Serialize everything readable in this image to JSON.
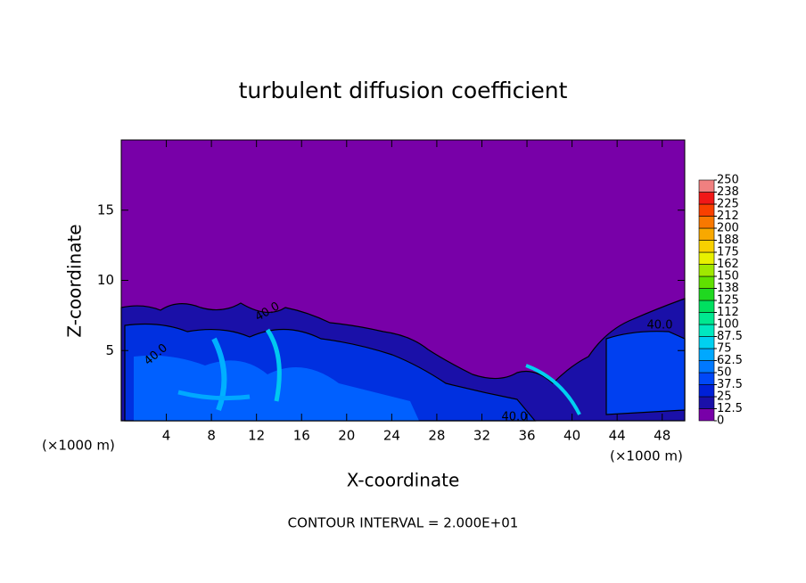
{
  "chart_data": {
    "type": "contour",
    "title": "turbulent diffusion coefficient",
    "x_label": "X-coordinate",
    "y_label": "Z-coordinate",
    "x_unit": "(×1000 m)",
    "xlim": [
      0,
      50
    ],
    "xticks": [
      4,
      8,
      12,
      16,
      20,
      24,
      28,
      32,
      36,
      40,
      44,
      48
    ],
    "ylim": [
      0,
      20
    ],
    "yticks": [
      5,
      10,
      15
    ],
    "footer": "CONTOUR INTERVAL = 2.000E+01",
    "contour_labels": [
      "40.0",
      "40.0",
      "40.0",
      "40.0"
    ],
    "colorbar": {
      "levels": [
        0,
        12.5,
        25,
        37.5,
        50,
        62.5,
        75,
        87.5,
        100,
        {
          "value": 112.5,
          "label": "112"
        },
        125,
        {
          "value": 137.5,
          "label": "138"
        },
        150,
        {
          "value": 162.5,
          "label": "162"
        },
        175,
        {
          "value": 187.5,
          "label": "188"
        },
        200,
        {
          "value": 212.5,
          "label": "212"
        },
        225,
        {
          "value": 237.5,
          "label": "238"
        },
        250
      ],
      "colors": [
        "#7800a8",
        "#1a10a8",
        "#0020d8",
        "#0048f8",
        "#0078ff",
        "#00a8ff",
        "#00d0f0",
        "#00e8c0",
        "#00e890",
        "#00e060",
        "#20d820",
        "#60e000",
        "#a0e800",
        "#e8f000",
        "#f8d000",
        "#f8a800",
        "#f87800",
        "#f84000",
        "#f01818",
        "#f08080"
      ]
    }
  }
}
